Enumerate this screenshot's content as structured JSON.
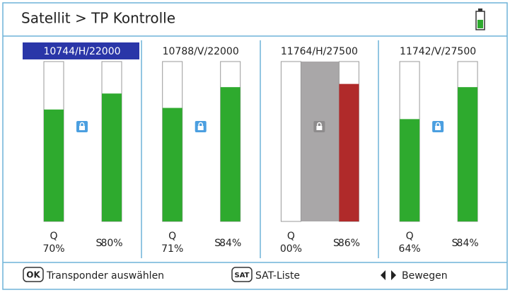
{
  "header": {
    "title": "Satellit > TP Kontrolle"
  },
  "value_range": [
    0,
    100
  ],
  "selected": 0,
  "panels": [
    {
      "label": "10744/H/22000",
      "locked": true,
      "q_name": "Q",
      "q_value": 70,
      "q_label": "70%",
      "s_name": "S",
      "s_value": 80,
      "s_label": "80%",
      "q_color": "#2eaa2e",
      "s_color": "#2eaa2e"
    },
    {
      "label": "10788/V/22000",
      "locked": true,
      "q_name": "Q",
      "q_value": 71,
      "q_label": "71%",
      "s_name": "S",
      "s_value": 84,
      "s_label": "84%",
      "q_color": "#2eaa2e",
      "s_color": "#2eaa2e"
    },
    {
      "label": "11764/H/27500",
      "locked": false,
      "q_name": "Q",
      "q_value": 0,
      "q_label": "00%",
      "s_name": "S",
      "s_value": 86,
      "s_label": "86%",
      "q_color": "#2eaa2e",
      "s_color": "#b02a2a"
    },
    {
      "label": "11742/V/27500",
      "locked": true,
      "q_name": "Q",
      "q_value": 64,
      "q_label": "64%",
      "s_name": "S",
      "s_value": 84,
      "s_label": "84%",
      "q_color": "#2eaa2e",
      "s_color": "#2eaa2e"
    }
  ],
  "footer": [
    {
      "key": "OK",
      "text": "Transponder auswählen"
    },
    {
      "key": "SAT",
      "text": "SAT-Liste"
    },
    {
      "text": "Bewegen"
    }
  ]
}
